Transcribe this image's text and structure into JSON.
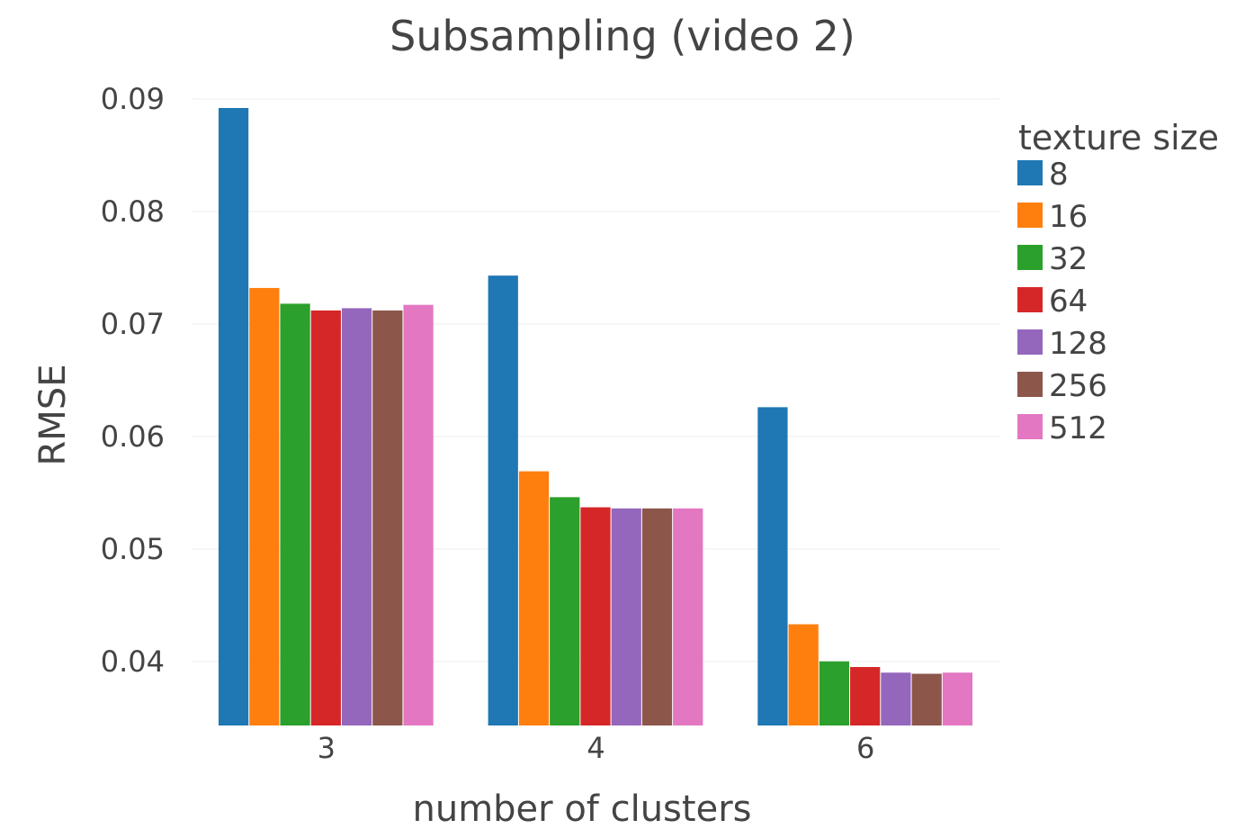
{
  "chart_data": {
    "type": "bar",
    "title": "Subsampling (video 2)",
    "xlabel": "number of clusters",
    "ylabel": "RMSE",
    "categories": [
      "3",
      "4",
      "6"
    ],
    "ylim": [
      0.0343,
      0.09
    ],
    "yticks": [
      0.04,
      0.05,
      0.06,
      0.07,
      0.08,
      0.09
    ],
    "ytick_labels": [
      "0.04",
      "0.05",
      "0.06",
      "0.07",
      "0.08",
      "0.09"
    ],
    "grid": true,
    "legend": {
      "title": "texture size",
      "position": "right"
    },
    "series": [
      {
        "name": "8",
        "color": "#1f77b4",
        "values": [
          0.0892,
          0.0743,
          0.0626
        ]
      },
      {
        "name": "16",
        "color": "#ff7f0e",
        "values": [
          0.0732,
          0.0569,
          0.0433
        ]
      },
      {
        "name": "32",
        "color": "#2ca02c",
        "values": [
          0.0718,
          0.0546,
          0.04
        ]
      },
      {
        "name": "64",
        "color": "#d62728",
        "values": [
          0.0712,
          0.0537,
          0.0395
        ]
      },
      {
        "name": "128",
        "color": "#9467bd",
        "values": [
          0.0714,
          0.0536,
          0.039
        ]
      },
      {
        "name": "256",
        "color": "#8c564b",
        "values": [
          0.0712,
          0.0536,
          0.0389
        ]
      },
      {
        "name": "512",
        "color": "#e377c2",
        "values": [
          0.0717,
          0.0536,
          0.039
        ]
      }
    ]
  }
}
